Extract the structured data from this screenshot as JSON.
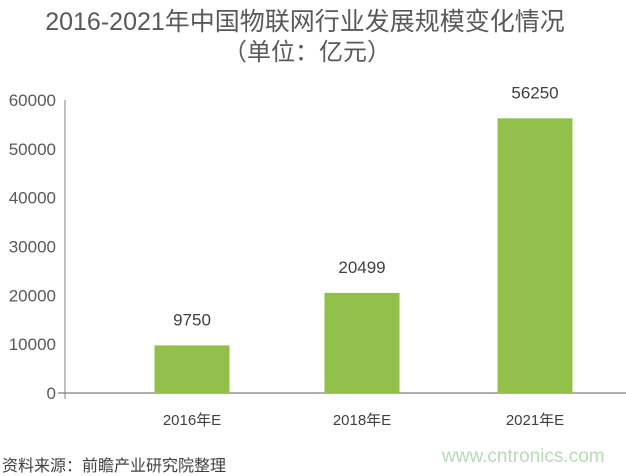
{
  "chart_data": {
    "type": "bar",
    "title": "2016-2021年中国物联网行业发展规模变化情况",
    "subtitle": "（单位：亿元）",
    "categories": [
      "2016年E",
      "2018年E",
      "2021年E"
    ],
    "values": [
      9750,
      20499,
      56250
    ],
    "data_labels": [
      "9750",
      "20499",
      "56250"
    ],
    "ylim": [
      0,
      60000
    ],
    "yticks": [
      0,
      10000,
      20000,
      30000,
      40000,
      50000,
      60000
    ],
    "xlabel": "",
    "ylabel": "",
    "grid": false,
    "legend": "none",
    "bar_color": "#92c04a"
  },
  "source": "资料来源：前瞻产业研究院整理",
  "watermark": "www.cntronics.com"
}
